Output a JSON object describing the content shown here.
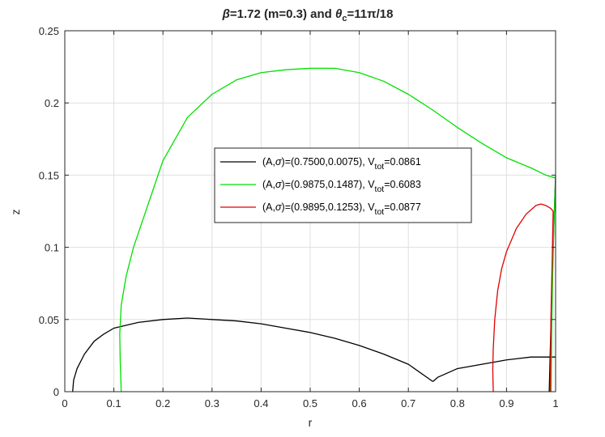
{
  "chart_data": {
    "type": "line",
    "title_parts": {
      "beta": "β",
      "beta_rest": "=1.72 (m=0.3) and ",
      "theta": "θ",
      "theta_sub": "c",
      "theta_rest": "=11π/18"
    },
    "xlabel": "r",
    "ylabel": "z",
    "xlim": [
      0,
      1
    ],
    "ylim": [
      0,
      0.25
    ],
    "xticks": [
      0,
      0.1,
      0.2,
      0.3,
      0.4,
      0.5,
      0.6,
      0.7,
      0.8,
      0.9,
      1
    ],
    "yticks": [
      0,
      0.05,
      0.1,
      0.15,
      0.2,
      0.25
    ],
    "xtick_labels": [
      "0",
      "0.1",
      "0.2",
      "0.3",
      "0.4",
      "0.5",
      "0.6",
      "0.7",
      "0.8",
      "0.9",
      "1"
    ],
    "ytick_labels": [
      "0",
      "0.05",
      "0.1",
      "0.15",
      "0.2",
      "0.25"
    ],
    "grid": true,
    "legend_position": "center-right",
    "series": [
      {
        "color": "#000000",
        "legend": {
          "pre": "(A,",
          "sigma": "σ",
          "mid": ")=(0.7500,0.0075), V",
          "sub": "tot",
          "post": "=0.0861"
        },
        "segments": [
          [
            [
              0.016,
              0
            ],
            [
              0.018,
              0.008
            ],
            [
              0.025,
              0.016
            ],
            [
              0.04,
              0.026
            ],
            [
              0.06,
              0.035
            ],
            [
              0.08,
              0.04
            ],
            [
              0.1,
              0.044
            ],
            [
              0.15,
              0.048
            ],
            [
              0.2,
              0.05
            ],
            [
              0.25,
              0.051
            ],
            [
              0.3,
              0.05
            ],
            [
              0.35,
              0.049
            ],
            [
              0.4,
              0.047
            ],
            [
              0.45,
              0.044
            ],
            [
              0.5,
              0.041
            ],
            [
              0.55,
              0.037
            ],
            [
              0.6,
              0.032
            ],
            [
              0.65,
              0.026
            ],
            [
              0.7,
              0.019
            ],
            [
              0.75,
              0.007
            ]
          ],
          [
            [
              0.75,
              0.007
            ],
            [
              0.76,
              0.01
            ],
            [
              0.78,
              0.013
            ],
            [
              0.8,
              0.016
            ],
            [
              0.85,
              0.019
            ],
            [
              0.9,
              0.022
            ],
            [
              0.95,
              0.024
            ],
            [
              1.0,
              0.024
            ]
          ],
          [
            [
              0.987,
              0
            ],
            [
              0.99,
              0.04
            ],
            [
              0.993,
              0.08
            ],
            [
              0.997,
              0.12
            ],
            [
              1.0,
              0.15
            ]
          ]
        ]
      },
      {
        "color": "#00e000",
        "legend": {
          "pre": "(A,",
          "sigma": "σ",
          "mid": ")=(0.9875,0.1487), V",
          "sub": "tot",
          "post": "=0.6083"
        },
        "segments": [
          [
            [
              0.115,
              0
            ],
            [
              0.113,
              0.02
            ],
            [
              0.112,
              0.04
            ],
            [
              0.115,
              0.06
            ],
            [
              0.125,
              0.08
            ],
            [
              0.14,
              0.1
            ],
            [
              0.16,
              0.12
            ],
            [
              0.18,
              0.14
            ],
            [
              0.2,
              0.16
            ],
            [
              0.25,
              0.19
            ],
            [
              0.3,
              0.206
            ],
            [
              0.35,
              0.216
            ],
            [
              0.4,
              0.221
            ],
            [
              0.45,
              0.223
            ],
            [
              0.5,
              0.224
            ],
            [
              0.55,
              0.224
            ],
            [
              0.6,
              0.221
            ],
            [
              0.65,
              0.215
            ],
            [
              0.7,
              0.206
            ],
            [
              0.75,
              0.195
            ],
            [
              0.8,
              0.183
            ],
            [
              0.85,
              0.172
            ],
            [
              0.9,
              0.162
            ],
            [
              0.95,
              0.155
            ],
            [
              0.98,
              0.15
            ],
            [
              1.0,
              0.148
            ]
          ],
          [
            [
              0.991,
              0
            ],
            [
              0.992,
              0.04
            ],
            [
              0.994,
              0.08
            ],
            [
              0.997,
              0.12
            ],
            [
              1.0,
              0.148
            ]
          ]
        ]
      },
      {
        "color": "#e00000",
        "legend": {
          "pre": "(A,",
          "sigma": "σ",
          "mid": ")=(0.9895,0.1253), V",
          "sub": "tot",
          "post": "=0.0877"
        },
        "segments": [
          [
            [
              0.873,
              0
            ],
            [
              0.872,
              0.015
            ],
            [
              0.873,
              0.03
            ],
            [
              0.876,
              0.05
            ],
            [
              0.882,
              0.07
            ],
            [
              0.89,
              0.085
            ],
            [
              0.9,
              0.097
            ],
            [
              0.92,
              0.113
            ],
            [
              0.94,
              0.123
            ],
            [
              0.96,
              0.129
            ],
            [
              0.97,
              0.13
            ],
            [
              0.98,
              0.129
            ],
            [
              0.99,
              0.127
            ],
            [
              0.995,
              0.125
            ]
          ],
          [
            [
              0.989,
              0
            ],
            [
              0.99,
              0.03
            ],
            [
              0.991,
              0.06
            ],
            [
              0.993,
              0.09
            ],
            [
              0.995,
              0.125
            ]
          ]
        ]
      }
    ]
  }
}
